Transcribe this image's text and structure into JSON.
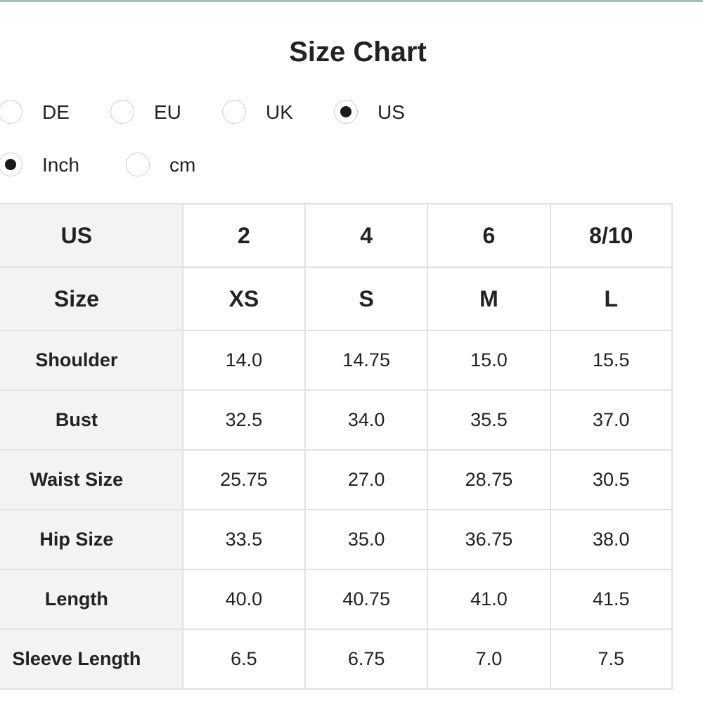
{
  "header": {
    "title": "Size Chart"
  },
  "regions": {
    "options": [
      "DE",
      "EU",
      "UK",
      "US"
    ],
    "selected": 3
  },
  "units": {
    "options": [
      "Inch",
      "cm"
    ],
    "selected": 0
  },
  "table": {
    "header_rows": 2,
    "rows": [
      [
        "US",
        "2",
        "4",
        "6",
        "8/10"
      ],
      [
        "Size",
        "XS",
        "S",
        "M",
        "L"
      ],
      [
        "Shoulder",
        "14.0",
        "14.75",
        "15.0",
        "15.5"
      ],
      [
        "Bust",
        "32.5",
        "34.0",
        "35.5",
        "37.0"
      ],
      [
        "Waist Size",
        "25.75",
        "27.0",
        "28.75",
        "30.5"
      ],
      [
        "Hip Size",
        "33.5",
        "35.0",
        "36.75",
        "38.0"
      ],
      [
        "Length",
        "40.0",
        "40.75",
        "41.0",
        "41.5"
      ],
      [
        "Sleeve Length",
        "6.5",
        "6.75",
        "7.0",
        "7.5"
      ]
    ]
  }
}
